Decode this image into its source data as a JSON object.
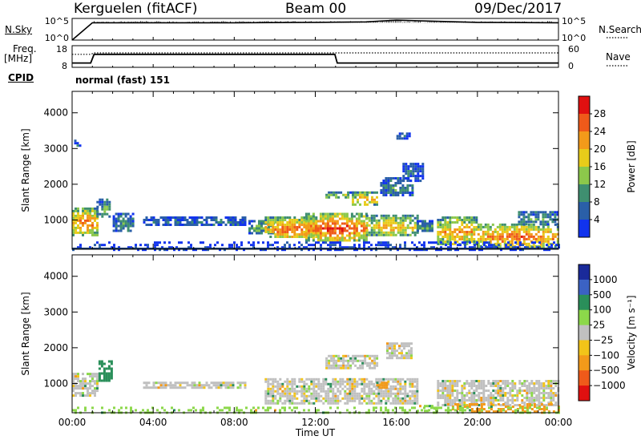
{
  "header": {
    "station": "Kerguelen (fitACF)",
    "beam": "Beam 00",
    "date": "09/Dec/2017"
  },
  "summary_panels": {
    "nsky": {
      "label": "N.Sky",
      "ticks": [
        "10^5",
        "10^0"
      ]
    },
    "nsearch": {
      "label": "N.Search",
      "ticks": [
        "10^5",
        "10^0"
      ]
    },
    "freq": {
      "label_line1": "Freq.",
      "label_line2": "[MHz]",
      "ticks": [
        "18",
        "8"
      ]
    },
    "nave": {
      "label": "Nave",
      "ticks": [
        "60",
        "0"
      ]
    },
    "cpid": {
      "label": "CPID",
      "value": "normal (fast) 151"
    }
  },
  "colors": {
    "power_scale": [
      "#1133ee",
      "#2a5fa8",
      "#3f8f70",
      "#8cc84b",
      "#e8cc1a",
      "#f39a1a",
      "#ef5a1a",
      "#e01010"
    ],
    "velocity_scale": [
      "#e01010",
      "#ef5a1a",
      "#f39a1a",
      "#f2c419",
      "#c0c0c0",
      "#8cd84a",
      "#2a8f5a",
      "#3b62c4",
      "#1a2a9a"
    ]
  },
  "chart_data": [
    {
      "type": "line",
      "panel": "N.Sky / N.Search",
      "x": [
        "00:00",
        "01:00",
        "04:00",
        "08:00",
        "12:00",
        "14:30",
        "16:00",
        "20:00",
        "24:00"
      ],
      "series": [
        {
          "name": "N.Sky",
          "values_log10": [
            0,
            4.0,
            4.0,
            4.0,
            4.1,
            4.2,
            4.6,
            4.1,
            4.0
          ]
        }
      ],
      "ylim_log10": [
        0,
        5
      ]
    },
    {
      "type": "line",
      "panel": "Freq. / Nave",
      "x": [
        "00:00",
        "00:55",
        "01:05",
        "12:00",
        "12:58",
        "13:05",
        "24:00"
      ],
      "series": [
        {
          "name": "Freq. [MHz]",
          "values": [
            10,
            10,
            14,
            14,
            14,
            10,
            10
          ]
        },
        {
          "name": "Nave",
          "values": [
            36,
            36,
            40,
            40,
            40,
            40,
            40
          ]
        }
      ],
      "ylim": [
        8,
        18
      ],
      "y2lim": [
        0,
        60
      ]
    },
    {
      "type": "heatmap",
      "title": "",
      "xlabel": "",
      "ylabel": "Slant Range [km]",
      "colorbar_label": "Power [dB]",
      "colorbar_ticks": [
        "28",
        "24",
        "20",
        "16",
        "12",
        "8",
        "4"
      ],
      "x_ticks": [],
      "y_ticks": [
        "1000",
        "2000",
        "3000",
        "4000"
      ],
      "xlim_hours": [
        0,
        24
      ],
      "ylim_km": [
        180,
        4600
      ],
      "cmin": 0,
      "cmax": 32,
      "echo_regions": [
        {
          "t0": 0.0,
          "t1": 1.2,
          "r0": 600,
          "r1": 1350,
          "v": 22
        },
        {
          "t0": 1.2,
          "t1": 1.9,
          "r0": 1100,
          "r1": 1600,
          "v": 10
        },
        {
          "t0": 2.0,
          "t1": 3.0,
          "r0": 700,
          "r1": 1200,
          "v": 8
        },
        {
          "t0": 3.5,
          "t1": 8.5,
          "r0": 850,
          "r1": 1100,
          "v": 6
        },
        {
          "t0": 8.7,
          "t1": 10.0,
          "r0": 650,
          "r1": 1000,
          "v": 12
        },
        {
          "t0": 9.5,
          "t1": 12.0,
          "r0": 500,
          "r1": 1100,
          "v": 22
        },
        {
          "t0": 11.5,
          "t1": 14.5,
          "r0": 450,
          "r1": 1200,
          "v": 24
        },
        {
          "t0": 12.5,
          "t1": 14.0,
          "r0": 1600,
          "r1": 1800,
          "v": 14
        },
        {
          "t0": 13.8,
          "t1": 15.0,
          "r0": 1450,
          "r1": 1800,
          "v": 20
        },
        {
          "t0": 14.5,
          "t1": 17.0,
          "r0": 600,
          "r1": 1150,
          "v": 18
        },
        {
          "t0": 15.2,
          "t1": 16.8,
          "r0": 1700,
          "r1": 2200,
          "v": 8
        },
        {
          "t0": 16.3,
          "t1": 17.3,
          "r0": 2100,
          "r1": 2600,
          "v": 6
        },
        {
          "t0": 17.0,
          "t1": 17.8,
          "r0": 700,
          "r1": 1000,
          "v": 10
        },
        {
          "t0": 18.0,
          "t1": 20.0,
          "r0": 350,
          "r1": 1100,
          "v": 20
        },
        {
          "t0": 20.0,
          "t1": 24.0,
          "r0": 250,
          "r1": 900,
          "v": 22
        },
        {
          "t0": 22.0,
          "t1": 24.0,
          "r0": 900,
          "r1": 1250,
          "v": 10
        },
        {
          "t0": 0.0,
          "t1": 24.0,
          "r0": 180,
          "r1": 400,
          "v": 2
        },
        {
          "t0": 0.1,
          "t1": 0.4,
          "r0": 3050,
          "r1": 3250,
          "v": 6
        },
        {
          "t0": 16.0,
          "t1": 16.6,
          "r0": 3300,
          "r1": 3450,
          "v": 6
        }
      ]
    },
    {
      "type": "heatmap",
      "title": "",
      "xlabel": "Time UT",
      "ylabel": "Slant Range [km]",
      "colorbar_label": "Velocity [m s⁻¹]",
      "colorbar_ticks": [
        "1000",
        "500",
        "100",
        "25",
        "−25",
        "−100",
        "−500",
        "−1000"
      ],
      "x_ticks": [
        "00:00",
        "04:00",
        "08:00",
        "12:00",
        "16:00",
        "20:00",
        "00:00"
      ],
      "y_ticks": [
        "1000",
        "2000",
        "3000",
        "4000"
      ],
      "xlim_hours": [
        0,
        24
      ],
      "ylim_km": [
        180,
        4600
      ],
      "echo_regions": [
        {
          "t0": 0.0,
          "t1": 1.3,
          "r0": 650,
          "r1": 1300,
          "v": 0
        },
        {
          "t0": 1.3,
          "t1": 1.9,
          "r0": 1100,
          "r1": 1650,
          "v": 150
        },
        {
          "t0": 3.5,
          "t1": 8.5,
          "r0": 850,
          "r1": 1050,
          "v": 0
        },
        {
          "t0": 9.5,
          "t1": 17.0,
          "r0": 450,
          "r1": 1150,
          "v": 0
        },
        {
          "t0": 12.5,
          "t1": 15.0,
          "r0": 1450,
          "r1": 1800,
          "v": 0
        },
        {
          "t0": 15.0,
          "t1": 15.5,
          "r0": 850,
          "r1": 1050,
          "v": -150
        },
        {
          "t0": 15.5,
          "t1": 16.8,
          "r0": 1700,
          "r1": 2150,
          "v": 0
        },
        {
          "t0": 17.0,
          "t1": 18.0,
          "r0": 200,
          "r1": 400,
          "v": 80
        },
        {
          "t0": 18.0,
          "t1": 24.0,
          "r0": 400,
          "r1": 1100,
          "v": 0
        },
        {
          "t0": 18.5,
          "t1": 24.0,
          "r0": 200,
          "r1": 450,
          "v": -150
        },
        {
          "t0": 0.0,
          "t1": 24.0,
          "r0": 180,
          "r1": 350,
          "v": 60
        }
      ]
    }
  ]
}
